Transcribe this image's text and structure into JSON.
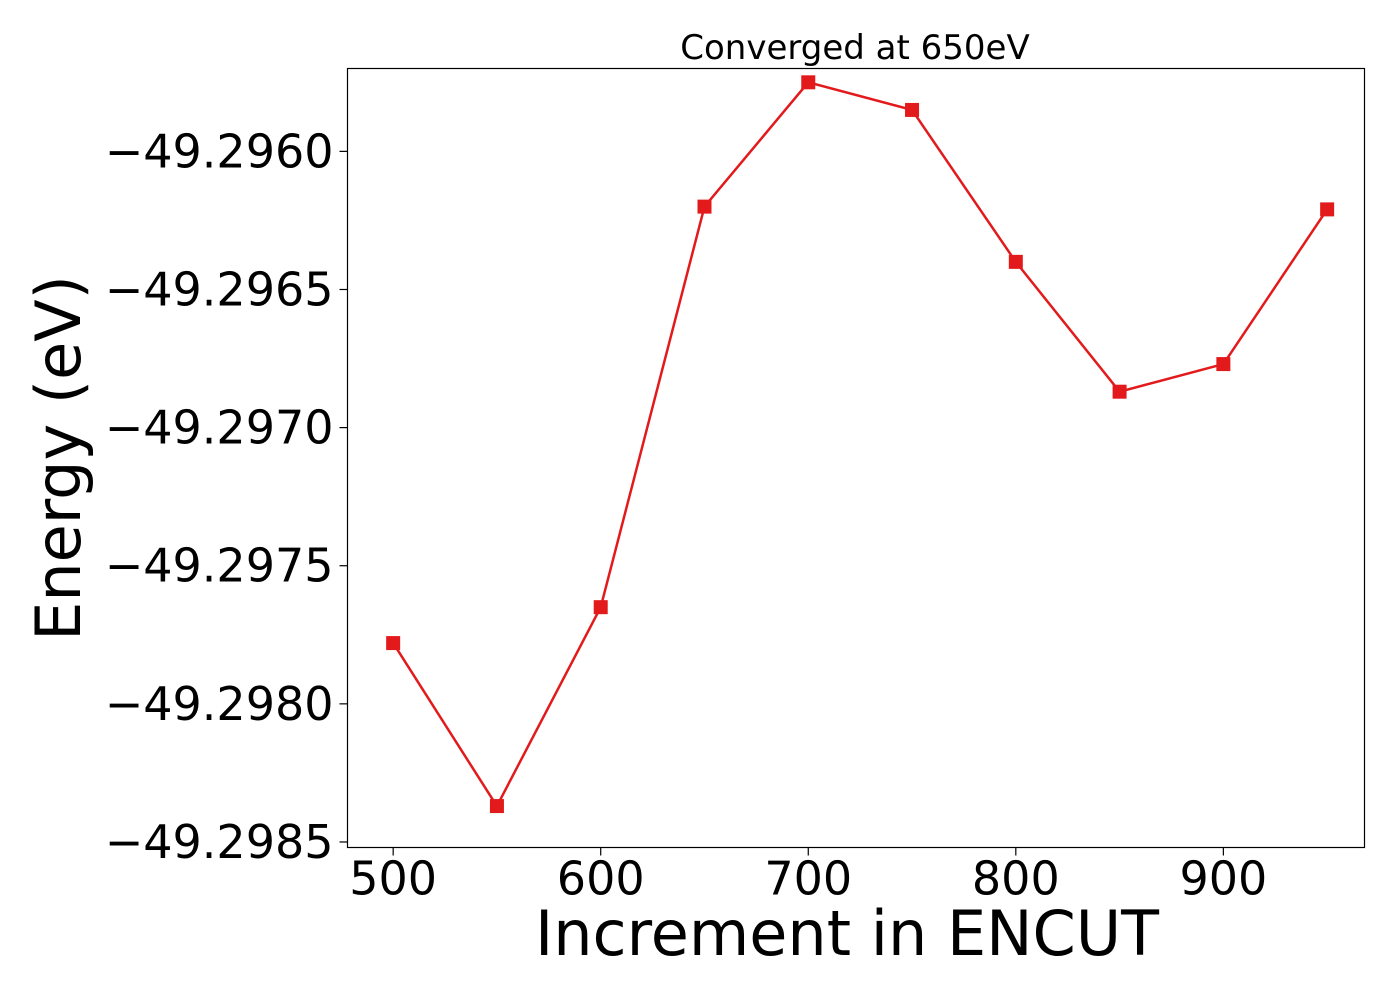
{
  "chart_data": {
    "type": "line",
    "title": "Converged at 650eV",
    "xlabel": "Increment in ENCUT",
    "ylabel": "Energy (eV)",
    "xlim": [
      478,
      968
    ],
    "ylim": [
      -49.29852,
      -49.2957
    ],
    "xticks": [
      500,
      600,
      700,
      800,
      900
    ],
    "xtick_labels": [
      "500",
      "600",
      "700",
      "800",
      "900"
    ],
    "yticks": [
      -49.296,
      -49.2965,
      -49.297,
      -49.2975,
      -49.298,
      -49.2985
    ],
    "ytick_labels": [
      "−49.2960",
      "−49.2965",
      "−49.2970",
      "−49.2975",
      "−49.2980",
      "−49.2985"
    ],
    "grid": false,
    "series": [
      {
        "color": "#e31a1c",
        "marker": "square",
        "x": [
          500,
          550,
          600,
          650,
          700,
          750,
          800,
          850,
          900,
          950
        ],
        "y": [
          -49.29778,
          -49.29837,
          -49.29765,
          -49.2962,
          -49.29575,
          -49.29585,
          -49.2964,
          -49.29687,
          -49.29677,
          -49.29621
        ]
      }
    ]
  }
}
